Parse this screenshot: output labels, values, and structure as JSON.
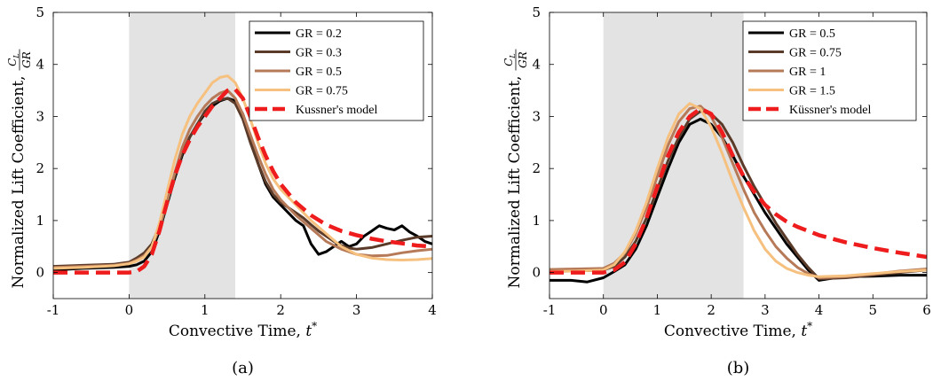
{
  "chart_data": [
    {
      "type": "line",
      "caption": "(a)",
      "xlabel": "Convective Time, ",
      "xlabel_symbol": "t",
      "xlabel_sup": "*",
      "ylabel": "Normalized Lift Coefficient, ",
      "ylabel_frac_num": "C",
      "ylabel_frac_num_sub": "L",
      "ylabel_frac_den": "GR",
      "xlim": [
        -1,
        4
      ],
      "ylim": [
        -0.5,
        5
      ],
      "xticks": [
        "-1",
        "0",
        "1",
        "2",
        "3",
        "4"
      ],
      "yticks": [
        "0",
        "1",
        "2",
        "3",
        "4",
        "5"
      ],
      "shaded_region": [
        0,
        1.4
      ],
      "legend_position": "top-right",
      "series": [
        {
          "name": "GR = 0.2",
          "color": "#000000",
          "dashed": false,
          "x": [
            -1,
            -0.6,
            -0.2,
            0,
            0.1,
            0.2,
            0.3,
            0.4,
            0.5,
            0.6,
            0.7,
            0.8,
            0.9,
            1.0,
            1.1,
            1.2,
            1.3,
            1.4,
            1.5,
            1.6,
            1.7,
            1.8,
            1.9,
            2.0,
            2.1,
            2.2,
            2.3,
            2.4,
            2.5,
            2.6,
            2.7,
            2.8,
            2.9,
            3.0,
            3.1,
            3.2,
            3.3,
            3.4,
            3.5,
            3.6,
            3.7,
            3.8,
            3.9,
            4.0
          ],
          "y": [
            0.05,
            0.08,
            0.1,
            0.12,
            0.15,
            0.22,
            0.4,
            0.8,
            1.3,
            1.8,
            2.25,
            2.6,
            2.85,
            3.05,
            3.2,
            3.3,
            3.35,
            3.3,
            3.05,
            2.6,
            2.1,
            1.7,
            1.45,
            1.3,
            1.15,
            1.0,
            0.9,
            0.55,
            0.35,
            0.4,
            0.5,
            0.6,
            0.5,
            0.55,
            0.7,
            0.8,
            0.9,
            0.85,
            0.82,
            0.9,
            0.78,
            0.7,
            0.6,
            0.55
          ]
        },
        {
          "name": "GR = 0.3",
          "color": "#5a3a28",
          "dashed": false,
          "x": [
            -1,
            -0.6,
            -0.2,
            0,
            0.1,
            0.2,
            0.3,
            0.4,
            0.5,
            0.6,
            0.7,
            0.8,
            0.9,
            1.0,
            1.1,
            1.2,
            1.3,
            1.4,
            1.5,
            1.6,
            1.7,
            1.8,
            1.9,
            2.0,
            2.1,
            2.2,
            2.3,
            2.4,
            2.5,
            2.6,
            2.7,
            2.8,
            2.9,
            3.0,
            3.2,
            3.4,
            3.6,
            3.8,
            4.0
          ],
          "y": [
            0.12,
            0.14,
            0.16,
            0.2,
            0.28,
            0.38,
            0.55,
            0.9,
            1.35,
            1.85,
            2.3,
            2.6,
            2.85,
            3.1,
            3.25,
            3.32,
            3.35,
            3.25,
            2.95,
            2.5,
            2.1,
            1.75,
            1.5,
            1.35,
            1.25,
            1.15,
            1.05,
            0.92,
            0.8,
            0.7,
            0.6,
            0.52,
            0.47,
            0.45,
            0.48,
            0.55,
            0.62,
            0.68,
            0.7
          ]
        },
        {
          "name": "GR = 0.5",
          "color": "#b67a58",
          "dashed": false,
          "x": [
            -1,
            -0.6,
            -0.2,
            0,
            0.1,
            0.2,
            0.3,
            0.4,
            0.5,
            0.6,
            0.7,
            0.8,
            0.9,
            1.0,
            1.1,
            1.2,
            1.3,
            1.4,
            1.5,
            1.6,
            1.7,
            1.8,
            1.9,
            2.0,
            2.2,
            2.4,
            2.6,
            2.8,
            3.0,
            3.2,
            3.4,
            3.6,
            3.8,
            4.0
          ],
          "y": [
            0.1,
            0.12,
            0.14,
            0.18,
            0.24,
            0.33,
            0.5,
            0.85,
            1.35,
            1.9,
            2.4,
            2.75,
            3.0,
            3.2,
            3.35,
            3.45,
            3.5,
            3.35,
            3.05,
            2.65,
            2.25,
            1.9,
            1.6,
            1.4,
            1.1,
            0.85,
            0.6,
            0.45,
            0.35,
            0.32,
            0.33,
            0.38,
            0.42,
            0.45
          ]
        },
        {
          "name": "GR = 0.75",
          "color": "#f6c07f",
          "dashed": false,
          "x": [
            -1,
            -0.6,
            -0.2,
            0,
            0.1,
            0.2,
            0.3,
            0.4,
            0.5,
            0.6,
            0.7,
            0.8,
            0.9,
            1.0,
            1.1,
            1.2,
            1.3,
            1.4,
            1.5,
            1.6,
            1.7,
            1.8,
            1.9,
            2.0,
            2.2,
            2.4,
            2.6,
            2.8,
            3.0,
            3.2,
            3.4,
            3.6,
            3.8,
            4.0
          ],
          "y": [
            0.08,
            0.1,
            0.13,
            0.17,
            0.22,
            0.3,
            0.5,
            0.95,
            1.55,
            2.15,
            2.65,
            3.0,
            3.25,
            3.45,
            3.65,
            3.75,
            3.78,
            3.65,
            3.35,
            2.95,
            2.5,
            2.1,
            1.8,
            1.6,
            1.3,
            1.0,
            0.75,
            0.5,
            0.35,
            0.28,
            0.25,
            0.24,
            0.25,
            0.27
          ]
        },
        {
          "name": "Kussner's model",
          "color": "#ee1c1c",
          "dashed": true,
          "x": [
            -1,
            0,
            0.1,
            0.2,
            0.3,
            0.4,
            0.5,
            0.6,
            0.7,
            0.8,
            0.9,
            1.0,
            1.1,
            1.2,
            1.3,
            1.4,
            1.5,
            1.6,
            1.7,
            1.8,
            1.9,
            2.0,
            2.2,
            2.4,
            2.6,
            2.8,
            3.0,
            3.2,
            3.4,
            3.6,
            3.8,
            4.0
          ],
          "y": [
            0.0,
            0.0,
            0.02,
            0.12,
            0.35,
            0.8,
            1.35,
            1.85,
            2.25,
            2.55,
            2.8,
            3.0,
            3.2,
            3.35,
            3.5,
            3.52,
            3.35,
            3.0,
            2.6,
            2.25,
            1.95,
            1.7,
            1.35,
            1.1,
            0.92,
            0.8,
            0.72,
            0.65,
            0.6,
            0.56,
            0.52,
            0.5
          ]
        }
      ]
    },
    {
      "type": "line",
      "caption": "(b)",
      "xlabel": "Convective Time, ",
      "xlabel_symbol": "t",
      "xlabel_sup": "*",
      "ylabel": "Normalized Lift Coefficient, ",
      "ylabel_frac_num": "C",
      "ylabel_frac_num_sub": "L",
      "ylabel_frac_den": "GR",
      "xlim": [
        -1,
        6
      ],
      "ylim": [
        -0.5,
        5
      ],
      "xticks": [
        "-1",
        "0",
        "1",
        "2",
        "3",
        "4",
        "5",
        "6"
      ],
      "yticks": [
        "0",
        "1",
        "2",
        "3",
        "4",
        "5"
      ],
      "shaded_region": [
        0,
        2.6
      ],
      "legend_position": "top-right",
      "series": [
        {
          "name": "GR = 0.5",
          "color": "#000000",
          "dashed": false,
          "x": [
            -1,
            -0.6,
            -0.3,
            0,
            0.2,
            0.4,
            0.6,
            0.8,
            1.0,
            1.2,
            1.4,
            1.6,
            1.8,
            2.0,
            2.2,
            2.4,
            2.6,
            2.8,
            3.0,
            3.2,
            3.4,
            3.6,
            3.8,
            4.0,
            4.3,
            4.6,
            5.0,
            5.5,
            6.0
          ],
          "y": [
            -0.15,
            -0.15,
            -0.18,
            -0.1,
            0.02,
            0.15,
            0.45,
            0.9,
            1.45,
            2.0,
            2.5,
            2.85,
            2.95,
            2.85,
            2.6,
            2.25,
            1.85,
            1.5,
            1.15,
            0.85,
            0.55,
            0.3,
            0.05,
            -0.15,
            -0.1,
            -0.08,
            -0.07,
            -0.05,
            -0.05
          ]
        },
        {
          "name": "GR = 0.75",
          "color": "#5a3a28",
          "dashed": false,
          "x": [
            -1,
            -0.5,
            0,
            0.2,
            0.4,
            0.6,
            0.8,
            1.0,
            1.2,
            1.4,
            1.6,
            1.8,
            2.0,
            2.2,
            2.4,
            2.6,
            2.8,
            3.0,
            3.2,
            3.4,
            3.6,
            3.8,
            4.0,
            4.5,
            5.0,
            5.5,
            6.0
          ],
          "y": [
            0.02,
            0.03,
            0.05,
            0.12,
            0.3,
            0.6,
            1.05,
            1.6,
            2.15,
            2.6,
            2.95,
            3.1,
            3.05,
            2.85,
            2.5,
            2.05,
            1.65,
            1.3,
            0.95,
            0.65,
            0.35,
            0.1,
            -0.12,
            -0.1,
            -0.05,
            0.0,
            0.05
          ]
        },
        {
          "name": "GR = 1",
          "color": "#b67a58",
          "dashed": false,
          "x": [
            -1,
            -0.5,
            0,
            0.2,
            0.4,
            0.6,
            0.8,
            1.0,
            1.2,
            1.4,
            1.6,
            1.8,
            2.0,
            2.2,
            2.4,
            2.6,
            2.8,
            3.0,
            3.2,
            3.4,
            3.6,
            3.8,
            4.0,
            4.5,
            5.0,
            5.5,
            6.0
          ],
          "y": [
            0.06,
            0.07,
            0.08,
            0.18,
            0.38,
            0.75,
            1.25,
            1.85,
            2.45,
            2.9,
            3.15,
            3.2,
            3.0,
            2.6,
            2.1,
            1.6,
            1.15,
            0.8,
            0.5,
            0.28,
            0.1,
            -0.02,
            -0.1,
            -0.08,
            -0.03,
            0.03,
            0.07
          ]
        },
        {
          "name": "GR = 1.5",
          "color": "#f6c07f",
          "dashed": false,
          "x": [
            -1,
            -0.5,
            0,
            0.2,
            0.4,
            0.6,
            0.8,
            1.0,
            1.2,
            1.4,
            1.6,
            1.8,
            2.0,
            2.2,
            2.4,
            2.6,
            2.8,
            3.0,
            3.2,
            3.4,
            3.6,
            3.8,
            4.0,
            4.5,
            5.0,
            5.5,
            6.0
          ],
          "y": [
            0.02,
            0.03,
            0.05,
            0.15,
            0.4,
            0.8,
            1.35,
            2.0,
            2.6,
            3.05,
            3.25,
            3.15,
            2.8,
            2.3,
            1.75,
            1.25,
            0.8,
            0.45,
            0.22,
            0.08,
            0.0,
            -0.05,
            -0.08,
            -0.06,
            -0.02,
            0.02,
            0.05
          ]
        },
        {
          "name": "Küssner's model",
          "color": "#ee1c1c",
          "dashed": true,
          "x": [
            -1,
            0,
            0.2,
            0.4,
            0.6,
            0.8,
            1.0,
            1.2,
            1.4,
            1.6,
            1.8,
            2.0,
            2.2,
            2.4,
            2.6,
            2.8,
            3.0,
            3.2,
            3.4,
            3.6,
            3.8,
            4.0,
            4.5,
            5.0,
            5.5,
            6.0
          ],
          "y": [
            0.0,
            0.0,
            0.05,
            0.2,
            0.55,
            1.05,
            1.65,
            2.25,
            2.7,
            3.0,
            3.15,
            3.05,
            2.7,
            2.25,
            1.85,
            1.55,
            1.3,
            1.12,
            0.98,
            0.88,
            0.8,
            0.72,
            0.58,
            0.47,
            0.38,
            0.3
          ]
        }
      ]
    }
  ]
}
